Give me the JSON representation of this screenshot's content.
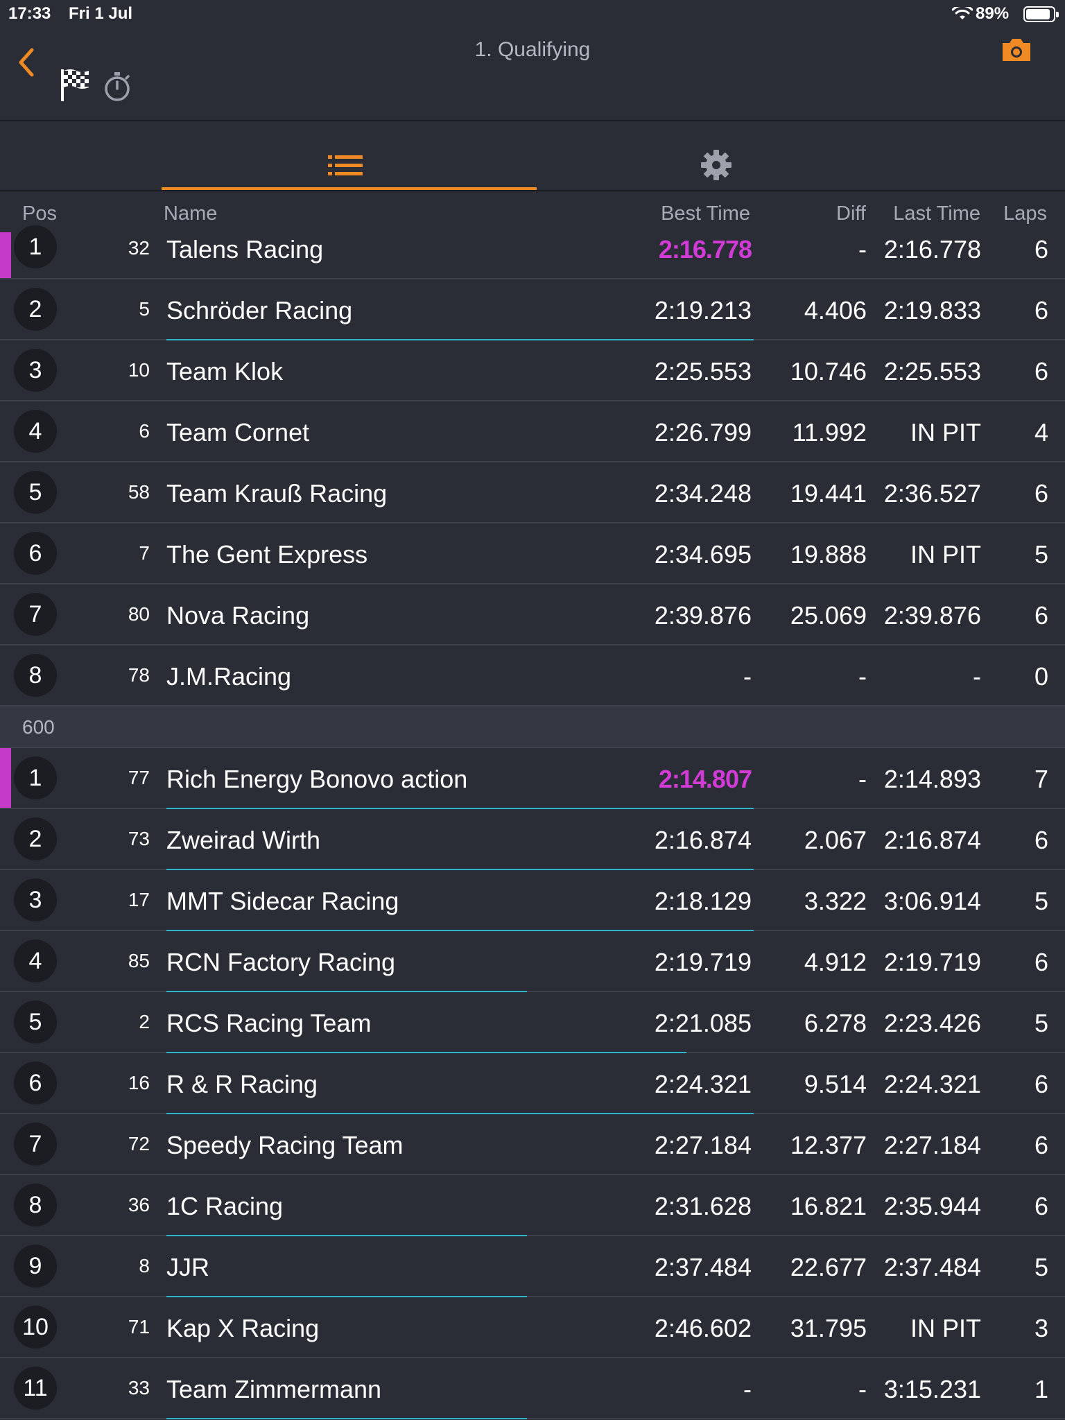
{
  "status_bar": {
    "time": "17:33",
    "date": "Fri 1 Jul",
    "battery_percent": "89%",
    "battery_level": 0.89
  },
  "header": {
    "title": "1. Qualifying",
    "back_icon": "chevron-left-icon",
    "camera_icon": "camera-icon",
    "flag_icon": "checkered-flag-icon",
    "stopwatch_icon": "stopwatch-icon"
  },
  "tabs": [
    {
      "icon": "list-icon",
      "active": true
    },
    {
      "icon": "gear-icon",
      "active": false
    }
  ],
  "columns": {
    "pos": "Pos",
    "name": "Name",
    "best_time": "Best Time",
    "diff": "Diff",
    "last_time": "Last Time",
    "laps": "Laps"
  },
  "colors": {
    "accent": "#f08a24",
    "fastest": "#d23bd6",
    "progress": "#2fb7c9",
    "background": "#2a2d36"
  },
  "groups": [
    {
      "label": "",
      "rows": [
        {
          "pos": "1",
          "num": "32",
          "name": "Talens Racing",
          "best": "2:16.778",
          "diff": "-",
          "last": "2:16.778",
          "laps": "6",
          "fastest": true,
          "progress": 0
        },
        {
          "pos": "2",
          "num": "5",
          "name": "Schröder Racing",
          "best": "2:19.213",
          "diff": "4.406",
          "last": "2:19.833",
          "laps": "6",
          "fastest": false,
          "progress": 0.7
        },
        {
          "pos": "3",
          "num": "10",
          "name": "Team Klok",
          "best": "2:25.553",
          "diff": "10.746",
          "last": "2:25.553",
          "laps": "6",
          "fastest": false,
          "progress": 0
        },
        {
          "pos": "4",
          "num": "6",
          "name": "Team Cornet",
          "best": "2:26.799",
          "diff": "11.992",
          "last": "IN PIT",
          "laps": "4",
          "fastest": false,
          "progress": 0
        },
        {
          "pos": "5",
          "num": "58",
          "name": "Team Krauß Racing",
          "best": "2:34.248",
          "diff": "19.441",
          "last": "2:36.527",
          "laps": "6",
          "fastest": false,
          "progress": 0
        },
        {
          "pos": "6",
          "num": "7",
          "name": "The Gent Express",
          "best": "2:34.695",
          "diff": "19.888",
          "last": "IN PIT",
          "laps": "5",
          "fastest": false,
          "progress": 0
        },
        {
          "pos": "7",
          "num": "80",
          "name": "Nova Racing",
          "best": "2:39.876",
          "diff": "25.069",
          "last": "2:39.876",
          "laps": "6",
          "fastest": false,
          "progress": 0
        },
        {
          "pos": "8",
          "num": "78",
          "name": "J.M.Racing",
          "best": "-",
          "diff": "-",
          "last": "-",
          "laps": "0",
          "fastest": false,
          "progress": 0
        }
      ]
    },
    {
      "label": "600",
      "rows": [
        {
          "pos": "1",
          "num": "77",
          "name": "Rich Energy Bonovo action",
          "best": "2:14.807",
          "diff": "-",
          "last": "2:14.893",
          "laps": "7",
          "fastest": true,
          "progress": 0.7
        },
        {
          "pos": "2",
          "num": "73",
          "name": "Zweirad Wirth",
          "best": "2:16.874",
          "diff": "2.067",
          "last": "2:16.874",
          "laps": "6",
          "fastest": false,
          "progress": 0.7
        },
        {
          "pos": "3",
          "num": "17",
          "name": "MMT Sidecar Racing",
          "best": "2:18.129",
          "diff": "3.322",
          "last": "3:06.914",
          "laps": "5",
          "fastest": false,
          "progress": 0.7
        },
        {
          "pos": "4",
          "num": "85",
          "name": "RCN Factory Racing",
          "best": "2:19.719",
          "diff": "4.912",
          "last": "2:19.719",
          "laps": "6",
          "fastest": false,
          "progress": 0.43
        },
        {
          "pos": "5",
          "num": "2",
          "name": "RCS Racing Team",
          "best": "2:21.085",
          "diff": "6.278",
          "last": "2:23.426",
          "laps": "5",
          "fastest": false,
          "progress": 0.62
        },
        {
          "pos": "6",
          "num": "16",
          "name": "R & R Racing",
          "best": "2:24.321",
          "diff": "9.514",
          "last": "2:24.321",
          "laps": "6",
          "fastest": false,
          "progress": 0.7
        },
        {
          "pos": "7",
          "num": "72",
          "name": "Speedy Racing Team",
          "best": "2:27.184",
          "diff": "12.377",
          "last": "2:27.184",
          "laps": "6",
          "fastest": false,
          "progress": 0
        },
        {
          "pos": "8",
          "num": "36",
          "name": "1C Racing",
          "best": "2:31.628",
          "diff": "16.821",
          "last": "2:35.944",
          "laps": "6",
          "fastest": false,
          "progress": 0.43
        },
        {
          "pos": "9",
          "num": "8",
          "name": "JJR",
          "best": "2:37.484",
          "diff": "22.677",
          "last": "2:37.484",
          "laps": "5",
          "fastest": false,
          "progress": 0.43
        },
        {
          "pos": "10",
          "num": "71",
          "name": "Kap X Racing",
          "best": "2:46.602",
          "diff": "31.795",
          "last": "IN PIT",
          "laps": "3",
          "fastest": false,
          "progress": 0
        },
        {
          "pos": "11",
          "num": "33",
          "name": "Team Zimmermann",
          "best": "-",
          "diff": "-",
          "last": "3:15.231",
          "laps": "1",
          "fastest": false,
          "progress": 0.43
        }
      ]
    }
  ]
}
